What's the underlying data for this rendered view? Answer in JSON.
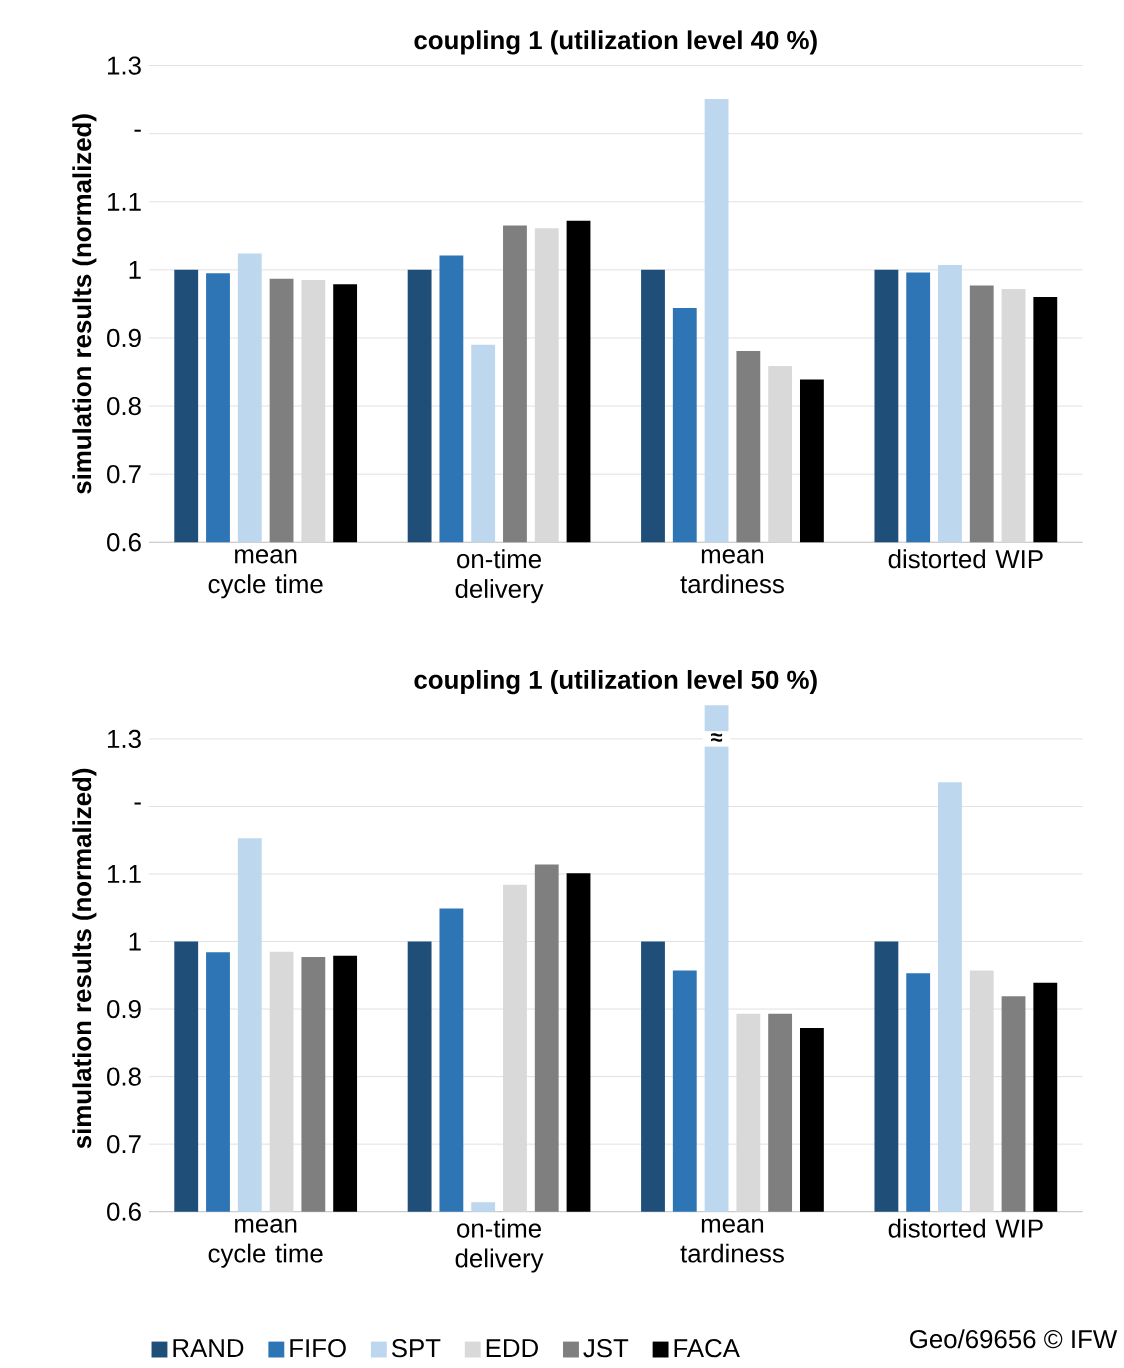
{
  "chart_data": [
    {
      "type": "bar",
      "title": "coupling 1 (utilization level 40 %)",
      "ylabel": "simulation results (normalized)",
      "categories": [
        "mean cycle time",
        "on-time delivery",
        "mean tardiness",
        "distorted WIP"
      ],
      "ylim": [
        0.6,
        1.3
      ],
      "yticks": [
        0.6,
        0.7,
        0.8,
        0.9,
        1,
        1.1,
        {
          "value": 1.2,
          "label": "-"
        },
        1.3
      ],
      "grid": "y",
      "legend": false,
      "series": [
        {
          "color": "#1f4e79",
          "values": [
            1.0,
            1.0,
            1.0,
            1.0
          ]
        },
        {
          "color": "#2e75b6",
          "values": [
            0.995,
            1.021,
            0.944,
            0.996
          ]
        },
        {
          "color": "#bdd7ee",
          "values": [
            1.024,
            0.89,
            1.251,
            1.007
          ]
        },
        {
          "color": "#7f7f7f",
          "values": [
            0.987,
            1.065,
            0.881,
            0.977
          ]
        },
        {
          "color": "#d9d9d9",
          "values": [
            0.985,
            1.061,
            0.859,
            0.972
          ]
        },
        {
          "color": "#000000",
          "values": [
            0.979,
            1.072,
            0.839,
            0.96
          ]
        }
      ]
    },
    {
      "type": "bar",
      "title": "coupling 1 (utilization level 50 %)",
      "ylabel": "simulation results (normalized)",
      "categories": [
        "mean cycle time",
        "on-time delivery",
        "mean tardiness",
        "distorted WIP"
      ],
      "ylim": [
        0.6,
        1.35
      ],
      "yticks": [
        0.6,
        0.7,
        0.8,
        0.9,
        1,
        1.1,
        {
          "value": 1.2,
          "label": "-"
        },
        1.3
      ],
      "grid": "y",
      "legend": "bottom",
      "annotations": [
        {
          "text": "≈",
          "x": "mean tardiness",
          "y": 1.3
        },
        "Geo/69656 © IFW"
      ],
      "series": [
        {
          "name": "RAND",
          "color": "#1f4e79",
          "values": [
            1.0,
            1.0,
            1.0,
            1.0
          ]
        },
        {
          "name": "FIFO",
          "color": "#2e75b6",
          "values": [
            0.984,
            1.049,
            0.957,
            0.953
          ]
        },
        {
          "name": "SPT",
          "color": "#bdd7ee",
          "values": [
            1.153,
            0.614,
            1.35,
            1.236
          ]
        },
        {
          "name": "EDD",
          "color": "#d9d9d9",
          "values": [
            0.985,
            1.084,
            0.893,
            0.957
          ]
        },
        {
          "name": "JST",
          "color": "#7f7f7f",
          "values": [
            0.977,
            1.114,
            0.893,
            0.919
          ]
        },
        {
          "name": "FACA",
          "color": "#000000",
          "values": [
            0.979,
            1.101,
            0.872,
            0.939
          ]
        }
      ]
    }
  ]
}
